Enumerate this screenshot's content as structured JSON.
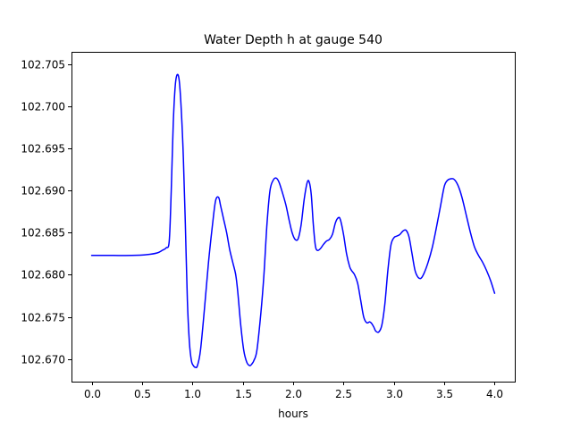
{
  "chart_data": {
    "type": "line",
    "title": "Water Depth h at gauge 540",
    "xlabel": "hours",
    "ylabel": "",
    "xlim": [
      -0.2,
      4.2
    ],
    "ylim": [
      102.6673,
      102.7065
    ],
    "grid": false,
    "xticks": [
      0.0,
      0.5,
      1.0,
      1.5,
      2.0,
      2.5,
      3.0,
      3.5,
      4.0
    ],
    "xtick_labels": [
      "0.0",
      "0.5",
      "1.0",
      "1.5",
      "2.0",
      "2.5",
      "3.0",
      "3.5",
      "4.0"
    ],
    "yticks": [
      102.67,
      102.675,
      102.68,
      102.685,
      102.69,
      102.695,
      102.7,
      102.705
    ],
    "ytick_labels": [
      "102.670",
      "102.675",
      "102.680",
      "102.685",
      "102.690",
      "102.695",
      "102.700",
      "102.705"
    ],
    "series": [
      {
        "color": "#0000ff",
        "x": [
          0.0,
          0.2,
          0.4,
          0.55,
          0.65,
          0.7,
          0.74,
          0.77,
          0.79,
          0.81,
          0.83,
          0.85,
          0.87,
          0.89,
          0.91,
          0.93,
          0.95,
          0.97,
          0.99,
          1.01,
          1.03,
          1.05,
          1.08,
          1.12,
          1.16,
          1.2,
          1.23,
          1.26,
          1.28,
          1.31,
          1.34,
          1.37,
          1.4,
          1.43,
          1.45,
          1.48,
          1.51,
          1.54,
          1.57,
          1.59,
          1.61,
          1.64,
          1.68,
          1.71,
          1.74,
          1.77,
          1.8,
          1.83,
          1.86,
          1.9,
          1.93,
          1.96,
          1.99,
          2.02,
          2.05,
          2.08,
          2.11,
          2.14,
          2.16,
          2.18,
          2.2,
          2.22,
          2.24,
          2.27,
          2.3,
          2.33,
          2.36,
          2.39,
          2.42,
          2.45,
          2.47,
          2.5,
          2.53,
          2.56,
          2.58,
          2.61,
          2.64,
          2.67,
          2.7,
          2.73,
          2.76,
          2.78,
          2.8,
          2.82,
          2.85,
          2.88,
          2.91,
          2.94,
          2.97,
          3.0,
          3.03,
          3.06,
          3.09,
          3.12,
          3.15,
          3.18,
          3.21,
          3.24,
          3.27,
          3.3,
          3.34,
          3.38,
          3.42,
          3.46,
          3.5,
          3.53,
          3.56,
          3.59,
          3.62,
          3.65,
          3.68,
          3.72,
          3.76,
          3.8,
          3.84,
          3.88,
          3.92,
          3.96,
          4.0
        ],
        "y": [
          102.6823,
          102.6823,
          102.6823,
          102.6824,
          102.6826,
          102.6829,
          102.6832,
          102.684,
          102.69,
          102.698,
          102.7025,
          102.7038,
          102.703,
          102.6995,
          102.694,
          102.686,
          102.677,
          102.672,
          102.6698,
          102.6692,
          102.669,
          102.6692,
          102.671,
          102.676,
          102.6815,
          102.686,
          102.6888,
          102.6892,
          102.6882,
          102.6866,
          102.685,
          102.683,
          102.6815,
          102.68,
          102.678,
          102.674,
          102.671,
          102.6696,
          102.6692,
          102.6694,
          102.6698,
          102.671,
          102.6755,
          102.68,
          102.686,
          102.69,
          102.6912,
          102.6915,
          102.691,
          102.6895,
          102.6882,
          102.6865,
          102.685,
          102.6842,
          102.6843,
          102.686,
          102.689,
          102.691,
          102.691,
          102.6895,
          102.686,
          102.6835,
          102.6829,
          102.6831,
          102.6836,
          102.684,
          102.6842,
          102.6848,
          102.6862,
          102.6868,
          102.6865,
          102.6848,
          102.6825,
          102.681,
          102.6805,
          102.68,
          102.679,
          102.677,
          102.675,
          102.6743,
          102.6744,
          102.6742,
          102.6738,
          102.6733,
          102.6732,
          102.674,
          102.6765,
          102.6805,
          102.6835,
          102.6844,
          102.6846,
          102.6848,
          102.6852,
          102.6853,
          102.6845,
          102.6825,
          102.6805,
          102.6797,
          102.6796,
          102.6802,
          102.6815,
          102.6832,
          102.6855,
          102.688,
          102.6905,
          102.6912,
          102.6914,
          102.6914,
          102.691,
          102.6902,
          102.689,
          102.687,
          102.685,
          102.6833,
          102.6823,
          102.6815,
          102.6805,
          102.6793,
          102.6778
        ]
      }
    ]
  }
}
